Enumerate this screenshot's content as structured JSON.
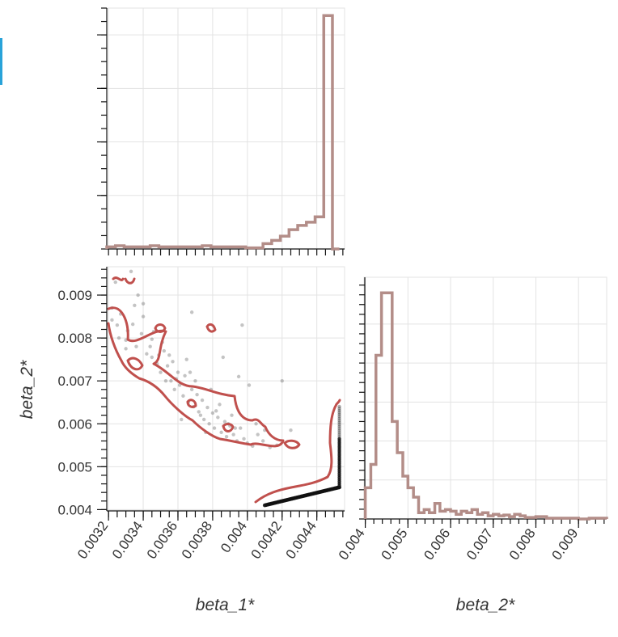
{
  "colors": {
    "hist": "#b38d88",
    "contour": "#c0504d",
    "scatter": "#555555",
    "dense": "#111111",
    "grid": "#e3e3e3",
    "selection_marker": "#29a3d9"
  },
  "axes": {
    "x_title": "beta_1*",
    "y_title": "beta_2*",
    "diag_x_title": "beta_2*"
  },
  "chart_data": [
    {
      "type": "histogram",
      "panel": "top-left",
      "xlabel": "",
      "xlim": [
        0.00319,
        0.00456
      ],
      "bins_x": [
        0.00319,
        0.00324,
        0.00329,
        0.00334,
        0.00339,
        0.00344,
        0.00349,
        0.00354,
        0.00359,
        0.00364,
        0.00369,
        0.00374,
        0.00379,
        0.00384,
        0.00389,
        0.00394,
        0.00399,
        0.00404,
        0.00409,
        0.00414,
        0.00419,
        0.00424,
        0.00429,
        0.00434,
        0.00439,
        0.00444,
        0.00449,
        0.00453
      ],
      "counts": [
        2,
        3,
        2,
        2,
        2,
        3,
        2,
        2,
        2,
        2,
        2,
        3,
        2,
        2,
        2,
        2,
        1,
        1,
        5,
        8,
        12,
        18,
        22,
        25,
        30,
        218,
        0
      ],
      "ylim": [
        0,
        225
      ]
    },
    {
      "type": "scatter+contour",
      "panel": "bottom-left",
      "xlabel": "beta_1*",
      "ylabel": "beta_2*",
      "xlim": [
        0.00319,
        0.00456
      ],
      "ylim": [
        0.00397,
        0.00966
      ],
      "x_ticks": [
        "0.0032",
        "0.0034",
        "0.0036",
        "0.0038",
        "0.004",
        "0.0042",
        "0.0044"
      ],
      "x_tick_values": [
        0.0032,
        0.0034,
        0.0036,
        0.0038,
        0.004,
        0.0042,
        0.0044
      ],
      "y_ticks": [
        "0.004",
        "0.005",
        "0.006",
        "0.007",
        "0.008",
        "0.009"
      ],
      "y_tick_values": [
        0.004,
        0.005,
        0.006,
        0.007,
        0.008,
        0.009
      ],
      "points": [
        [
          0.00322,
          0.0087
        ],
        [
          0.00322,
          0.00842
        ],
        [
          0.00325,
          0.0083
        ],
        [
          0.00327,
          0.00856
        ],
        [
          0.00331,
          0.00817
        ],
        [
          0.00334,
          0.00832
        ],
        [
          0.0033,
          0.00795
        ],
        [
          0.00335,
          0.00876
        ],
        [
          0.00336,
          0.0078
        ],
        [
          0.00339,
          0.0081
        ],
        [
          0.00342,
          0.00763
        ],
        [
          0.00345,
          0.00797
        ],
        [
          0.0034,
          0.0085
        ],
        [
          0.00337,
          0.009
        ],
        [
          0.00333,
          0.00955
        ],
        [
          0.00324,
          0.0093
        ],
        [
          0.00345,
          0.00755
        ],
        [
          0.00348,
          0.0074
        ],
        [
          0.0035,
          0.0072
        ],
        [
          0.00352,
          0.0077
        ],
        [
          0.00354,
          0.00735
        ],
        [
          0.00356,
          0.007
        ],
        [
          0.00358,
          0.0068
        ],
        [
          0.00359,
          0.00705
        ],
        [
          0.00361,
          0.0069
        ],
        [
          0.00363,
          0.00665
        ],
        [
          0.00364,
          0.00712
        ],
        [
          0.00366,
          0.0065
        ],
        [
          0.00368,
          0.0068
        ],
        [
          0.00369,
          0.0064
        ],
        [
          0.00371,
          0.00668
        ],
        [
          0.00372,
          0.00628
        ],
        [
          0.00374,
          0.00655
        ],
        [
          0.00375,
          0.0061
        ],
        [
          0.00377,
          0.00638
        ],
        [
          0.00378,
          0.006
        ],
        [
          0.0038,
          0.00625
        ],
        [
          0.00381,
          0.0059
        ],
        [
          0.00383,
          0.00615
        ],
        [
          0.00385,
          0.0058
        ],
        [
          0.00387,
          0.00605
        ],
        [
          0.00388,
          0.0057
        ],
        [
          0.0039,
          0.00595
        ],
        [
          0.00392,
          0.00575
        ],
        [
          0.00394,
          0.0056
        ],
        [
          0.00396,
          0.0059
        ],
        [
          0.00398,
          0.00565
        ],
        [
          0.004,
          0.00555
        ],
        [
          0.00403,
          0.00548
        ],
        [
          0.00406,
          0.00575
        ],
        [
          0.00409,
          0.0056
        ],
        [
          0.00413,
          0.00545
        ],
        [
          0.00417,
          0.0055
        ],
        [
          0.0036,
          0.0072
        ],
        [
          0.00365,
          0.0075
        ],
        [
          0.0037,
          0.007
        ],
        [
          0.00355,
          0.0076
        ],
        [
          0.00362,
          0.0061
        ],
        [
          0.00376,
          0.0058
        ],
        [
          0.00384,
          0.00645
        ],
        [
          0.00391,
          0.0062
        ],
        [
          0.00379,
          0.0068
        ],
        [
          0.00386,
          0.00755
        ],
        [
          0.00395,
          0.0071
        ],
        [
          0.00401,
          0.0069
        ],
        [
          0.0042,
          0.007
        ],
        [
          0.00425,
          0.00585
        ],
        [
          0.00397,
          0.0083
        ],
        [
          0.00368,
          0.0086
        ],
        [
          0.0034,
          0.0088
        ],
        [
          0.00346,
          0.00815
        ],
        [
          0.00351,
          0.0079
        ],
        [
          0.00357,
          0.00745
        ],
        [
          0.00373,
          0.0062
        ],
        [
          0.00389,
          0.006
        ],
        [
          0.00393,
          0.0059
        ],
        [
          0.00405,
          0.006
        ],
        [
          0.0041,
          0.00585
        ],
        [
          0.00382,
          0.0063
        ],
        [
          0.00367,
          0.0072
        ],
        [
          0.00353,
          0.007
        ],
        [
          0.00349,
          0.0076
        ],
        [
          0.00344,
          0.0078
        ],
        [
          0.0033,
          0.00775
        ],
        [
          0.00326,
          0.008
        ]
      ],
      "dense_band": {
        "from": [
          0.0041,
          0.0041
        ],
        "to": [
          0.00453,
          0.00452
        ],
        "vertical_to": [
          0.00453,
          0.0064
        ]
      }
    },
    {
      "type": "histogram",
      "panel": "bottom-right",
      "xlabel": "beta_2*",
      "xlim": [
        0.00397,
        0.00966
      ],
      "x_ticks": [
        "0.004",
        "0.005",
        "0.006",
        "0.007",
        "0.008",
        "0.009"
      ],
      "x_tick_values": [
        0.004,
        0.005,
        0.006,
        0.007,
        0.008,
        0.009
      ],
      "bins_x": [
        0.004,
        0.00413,
        0.00425,
        0.00438,
        0.0045,
        0.00463,
        0.00475,
        0.00488,
        0.005,
        0.00513,
        0.00525,
        0.00538,
        0.0055,
        0.00563,
        0.00575,
        0.00588,
        0.006,
        0.00613,
        0.00625,
        0.00638,
        0.0065,
        0.00663,
        0.00675,
        0.00688,
        0.007,
        0.00713,
        0.00725,
        0.00738,
        0.0075,
        0.00763,
        0.00775,
        0.008,
        0.00825,
        0.0085,
        0.00875,
        0.009,
        0.00925,
        0.00966
      ],
      "counts": [
        40,
        70,
        210,
        290,
        290,
        125,
        85,
        55,
        40,
        28,
        8,
        12,
        8,
        20,
        10,
        12,
        10,
        6,
        10,
        8,
        12,
        6,
        8,
        4,
        6,
        4,
        5,
        3,
        6,
        4,
        2,
        3,
        1,
        1,
        1,
        0,
        1
      ],
      "ylim": [
        0,
        310
      ]
    }
  ]
}
